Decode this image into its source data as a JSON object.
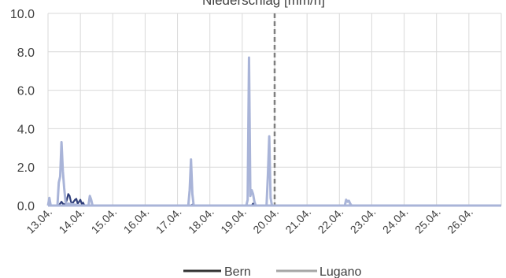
{
  "chart_data": {
    "type": "line",
    "title": "Niederschlag [mm/h]",
    "xlabel": "",
    "ylabel": "",
    "ylim": [
      0,
      10
    ],
    "xlim": [
      "2024-04-13",
      "2024-04-27"
    ],
    "y_ticks": [
      "0.0",
      "2.0",
      "4.0",
      "6.0",
      "8.0",
      "10.0"
    ],
    "x_ticks": [
      "13.04.",
      "14.04.",
      "15.04.",
      "16.04.",
      "17.04.",
      "18.04.",
      "19.04.",
      "20.04.",
      "21.04.",
      "22.04.",
      "23.04.",
      "24.04.",
      "25.04.",
      "26.04."
    ],
    "grid": true,
    "marker_date": "2024-04-20",
    "legend": "bottom",
    "colors": {
      "bern": "#2f3e7a",
      "lugano": "#a9b4d8",
      "legend_bern": "#333333",
      "legend_lugano": "#a6a6a6",
      "grid": "#d9d9d9",
      "marker": "#7f7f7f"
    },
    "series": [
      {
        "name": "Bern",
        "x": [
          "2024-04-13T00:00",
          "2024-04-13T08:00",
          "2024-04-13T09:00",
          "2024-04-13T10:00",
          "2024-04-13T11:00",
          "2024-04-13T12:00",
          "2024-04-13T13:00",
          "2024-04-13T14:00",
          "2024-04-13T15:00",
          "2024-04-13T16:00",
          "2024-04-13T17:00",
          "2024-04-13T18:00",
          "2024-04-13T19:00",
          "2024-04-13T20:00",
          "2024-04-13T21:00",
          "2024-04-13T22:00",
          "2024-04-13T23:00",
          "2024-04-14T00:00",
          "2024-04-14T01:00",
          "2024-04-14T02:00",
          "2024-04-14T03:00",
          "2024-04-17T10:00",
          "2024-04-17T11:00",
          "2024-04-17T12:00",
          "2024-04-19T07:00",
          "2024-04-19T08:00",
          "2024-04-19T09:00",
          "2024-04-22T07:00",
          "2024-04-22T08:00",
          "2024-04-22T09:00",
          "2024-04-26T23:00"
        ],
        "values": [
          0,
          0,
          0.1,
          0.2,
          0.1,
          0.05,
          0.1,
          0.3,
          0.6,
          0.5,
          0.2,
          0.1,
          0.2,
          0.3,
          0.35,
          0.1,
          0.2,
          0.3,
          0.1,
          0.15,
          0,
          0,
          0.05,
          0,
          0,
          0.1,
          0,
          0,
          0.05,
          0,
          0
        ]
      },
      {
        "name": "Lugano",
        "x": [
          "2024-04-13T00:00",
          "2024-04-13T01:00",
          "2024-04-13T02:00",
          "2024-04-13T03:00",
          "2024-04-13T07:00",
          "2024-04-13T08:00",
          "2024-04-13T09:00",
          "2024-04-13T10:00",
          "2024-04-13T11:00",
          "2024-04-13T12:00",
          "2024-04-13T13:00",
          "2024-04-13T14:00",
          "2024-04-13T15:00",
          "2024-04-14T00:00",
          "2024-04-14T06:00",
          "2024-04-14T07:00",
          "2024-04-14T08:00",
          "2024-04-14T09:00",
          "2024-04-17T08:00",
          "2024-04-17T09:00",
          "2024-04-17T10:00",
          "2024-04-17T11:00",
          "2024-04-17T12:00",
          "2024-04-19T03:00",
          "2024-04-19T04:00",
          "2024-04-19T05:00",
          "2024-04-19T06:00",
          "2024-04-19T07:00",
          "2024-04-19T08:00",
          "2024-04-19T09:00",
          "2024-04-19T10:00",
          "2024-04-19T18:00",
          "2024-04-19T19:00",
          "2024-04-19T20:00",
          "2024-04-19T21:00",
          "2024-04-19T22:00",
          "2024-04-22T04:00",
          "2024-04-22T05:00",
          "2024-04-22T06:00",
          "2024-04-22T07:00",
          "2024-04-22T08:00",
          "2024-04-22T09:00",
          "2024-04-26T23:00"
        ],
        "values": [
          0,
          0.4,
          0,
          0,
          0,
          1.2,
          1.5,
          3.3,
          1.8,
          0.9,
          0.2,
          0,
          0.1,
          0,
          0,
          0.5,
          0.3,
          0,
          0,
          0.8,
          2.4,
          0.6,
          0,
          0,
          0.3,
          7.7,
          0.5,
          0.8,
          0.6,
          0.2,
          0,
          0,
          1.6,
          3.6,
          0.4,
          0,
          0,
          0.3,
          0.2,
          0.25,
          0.1,
          0,
          0
        ]
      }
    ]
  }
}
